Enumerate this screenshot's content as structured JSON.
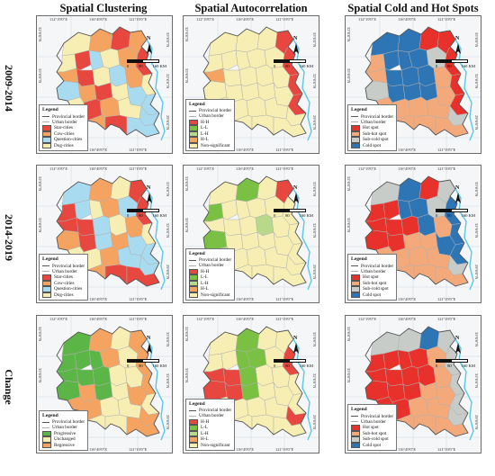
{
  "column_titles": [
    "Spatial Clustering",
    "Spatial Autocorrelation",
    "Spatial Cold and Hot Spots"
  ],
  "row_titles": [
    "2009-2014",
    "2014-2019",
    "Change"
  ],
  "coords": {
    "top": [
      "112°19'0\"E",
      "116°49'0\"E",
      "121°19'0\"E"
    ],
    "left": [
      "32°0'0\"N",
      "35°0'0\"N"
    ],
    "right": [
      "35°0'0\"N",
      "32°0'0\"N",
      "29°0'0\"N"
    ]
  },
  "north_label": "N",
  "scale": {
    "ticks": [
      "0",
      "80",
      "160 KM"
    ]
  },
  "colors": {
    "star": "#e8473f",
    "cow": "#f4a460",
    "question": "#a8dbf0",
    "dog": "#f7eeb4",
    "hh": "#e8473f",
    "ll": "#7ac143",
    "lh": "#b9d98a",
    "hl": "#f4a460",
    "ns": "#f7eeb4",
    "hot": "#e8312b",
    "subhot": "#f4a97a",
    "subcold": "#c8ccc8",
    "cold": "#2e75b6",
    "progressive": "#5bb547",
    "unchanged": "#f7eeb4",
    "regressive": "#f4a460",
    "provincial_border": "#555555",
    "urban_border": "#b0b0b0",
    "sea": "#5bc8e6"
  },
  "legends": {
    "clustering": {
      "title": "Legend",
      "items": [
        "Provincial border",
        "Urban border",
        "Star-cities",
        "Cow-cities",
        "Question-cities",
        "Dog-cities"
      ]
    },
    "autocorr": {
      "title": "Legend",
      "items": [
        "Provincial border",
        "Urban border",
        "H-H",
        "L-L",
        "L-H",
        "H-L",
        "Non-significant"
      ]
    },
    "hotspot": {
      "title": "Legend",
      "items": [
        "Provincial border",
        "Urban border",
        "Hot spot",
        "Sub-hot spot",
        "Sub-cold spot",
        "Cold spot"
      ]
    },
    "change": {
      "title": "Legend",
      "items": [
        "Provincial border",
        "Urban border",
        "Progressive",
        "Unchanged",
        "Regressive"
      ]
    },
    "change_hotspot": {
      "title": "Legend",
      "items": [
        "Provincial border",
        "Urban border",
        "Hot spot",
        "Sub-hot spot",
        "Sub-cold spot",
        "Cold spot"
      ]
    }
  }
}
